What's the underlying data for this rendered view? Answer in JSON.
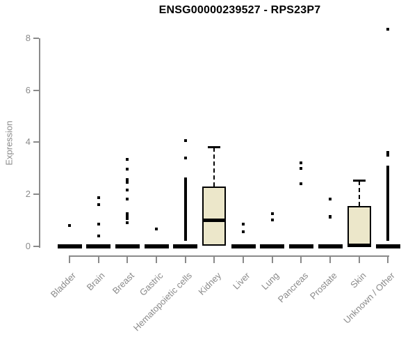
{
  "chart_data": {
    "type": "boxplot",
    "title": "ENSG00000239527 - RPS23P7",
    "ylabel": "Expression",
    "xlabel": "",
    "ylim": [
      0,
      8.5
    ],
    "yticks": [
      0,
      2,
      4,
      6,
      8
    ],
    "grid": false,
    "legend": false,
    "colors": {
      "box_fill": "#ece7ca",
      "box_border": "#000000",
      "median": "#000000",
      "points": "#000000",
      "axis": "#8a8a8a",
      "title": "#000000"
    },
    "categories": [
      "Bladder",
      "Brain",
      "Breast",
      "Gastric",
      "Hematopoietic cells",
      "Kidney",
      "Liver",
      "Lung",
      "Pancreas",
      "Prostate",
      "Skin",
      "Unknown / Other"
    ],
    "series": [
      {
        "category": "Bladder",
        "q1": 0,
        "median": 0,
        "q3": 0,
        "whisker_low": 0,
        "whisker_high": 0,
        "outliers": [
          0.8
        ]
      },
      {
        "category": "Brain",
        "q1": 0,
        "median": 0,
        "q3": 0,
        "whisker_low": 0,
        "whisker_high": 0,
        "outliers": [
          1.85,
          1.6,
          0.85,
          0.4
        ]
      },
      {
        "category": "Breast",
        "q1": 0,
        "median": 0,
        "q3": 0,
        "whisker_low": 0,
        "whisker_high": 0,
        "outliers": [
          3.35,
          2.95,
          2.55,
          2.45,
          2.15,
          1.8,
          1.25,
          1.15,
          1.05,
          0.9
        ]
      },
      {
        "category": "Gastric",
        "q1": 0,
        "median": 0,
        "q3": 0,
        "whisker_low": 0,
        "whisker_high": 0,
        "outliers": [
          0.65
        ]
      },
      {
        "category": "Hematopoietic cells",
        "q1": 0,
        "median": 0,
        "q3": 0,
        "whisker_low": 0,
        "whisker_high": 0,
        "outliers": [
          4.05,
          3.4,
          2.6,
          2.55,
          2.5,
          2.45,
          2.4,
          2.35,
          2.3,
          2.25,
          2.2,
          2.15,
          2.1,
          2.05,
          2.0,
          1.95,
          1.9,
          1.85,
          1.8,
          1.75,
          1.7,
          1.65,
          1.6,
          1.55,
          1.5,
          1.45,
          1.4,
          1.35,
          1.3,
          1.25,
          1.2,
          1.15,
          1.1,
          1.05,
          1.0,
          0.95,
          0.9,
          0.85,
          0.8,
          0.75,
          0.7,
          0.65,
          0.6,
          0.55,
          0.5,
          0.45,
          0.4,
          0.35,
          0.3,
          0.25
        ]
      },
      {
        "category": "Kidney",
        "q1": 0,
        "median": 1.0,
        "q3": 2.3,
        "whisker_low": 0,
        "whisker_high": 3.8,
        "outliers": []
      },
      {
        "category": "Liver",
        "q1": 0,
        "median": 0,
        "q3": 0,
        "whisker_low": 0,
        "whisker_high": 0,
        "outliers": [
          0.85,
          0.55
        ]
      },
      {
        "category": "Lung",
        "q1": 0,
        "median": 0,
        "q3": 0,
        "whisker_low": 0,
        "whisker_high": 0,
        "outliers": [
          1.25,
          1.0
        ]
      },
      {
        "category": "Pancreas",
        "q1": 0,
        "median": 0,
        "q3": 0,
        "whisker_low": 0,
        "whisker_high": 0,
        "outliers": [
          3.2,
          3.0,
          2.4
        ]
      },
      {
        "category": "Prostate",
        "q1": 0,
        "median": 0,
        "q3": 0,
        "whisker_low": 0,
        "whisker_high": 0,
        "outliers": [
          1.8,
          1.15,
          1.1
        ]
      },
      {
        "category": "Skin",
        "q1": 0,
        "median": 0,
        "q3": 1.55,
        "whisker_low": 0,
        "whisker_high": 2.5,
        "outliers": []
      },
      {
        "category": "Unknown / Other",
        "q1": 0,
        "median": 0,
        "q3": 0,
        "whisker_low": 0,
        "whisker_high": 0,
        "outliers": [
          8.35,
          3.6,
          3.55,
          3.5,
          3.05,
          3.0,
          2.95,
          2.9,
          2.85,
          2.8,
          2.75,
          2.7,
          2.65,
          2.6,
          2.55,
          2.5,
          2.45,
          2.4,
          2.35,
          2.3,
          2.25,
          2.2,
          2.15,
          2.1,
          2.05,
          2.0,
          1.95,
          1.9,
          1.85,
          1.8,
          1.75,
          1.7,
          1.65,
          1.6,
          1.5,
          1.45,
          1.4,
          1.35,
          1.3,
          1.25,
          1.2,
          1.15,
          1.1,
          1.05,
          1.0,
          0.95,
          0.9,
          0.85,
          0.8,
          0.75,
          0.7,
          0.65,
          0.6,
          0.55,
          0.5,
          0.45,
          0.4,
          0.35,
          0.3,
          0.25
        ]
      }
    ]
  }
}
